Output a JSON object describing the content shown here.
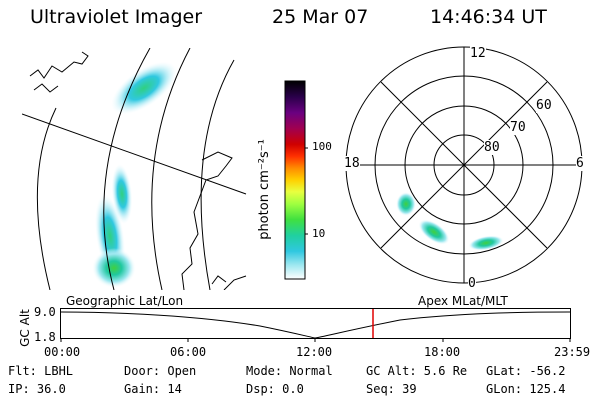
{
  "header": {
    "title": "Ultraviolet Imager",
    "date": "25 Mar 07",
    "time": "14:46:34 UT"
  },
  "colorbar": {
    "unit_label": "photon cm⁻²s⁻¹",
    "ticks": [
      "100",
      "10"
    ],
    "colors": [
      "#000000",
      "#2a004a",
      "#6a0080",
      "#a00050",
      "#d00000",
      "#ff3000",
      "#ff8c00",
      "#ffd000",
      "#e8ff40",
      "#a0ff40",
      "#40e040",
      "#20d0a0",
      "#30c8e0",
      "#9fe8f0",
      "#dff8ff",
      "#ffffff"
    ]
  },
  "polar": {
    "mlt_labels": {
      "top": "12",
      "left": "18",
      "right": "6",
      "bottom": "0"
    },
    "lat_labels": [
      "60",
      "70",
      "80"
    ]
  },
  "timeline": {
    "left_label": "Geographic Lat/Lon",
    "right_label": "Apex MLat/MLT",
    "y_axis_title": "GC Alt",
    "y_ticks": [
      "9.0",
      "1.8"
    ],
    "x_ticks": [
      "00:00",
      "06:00",
      "12:00",
      "18:00",
      "23:59"
    ],
    "marker_color": "#e00000"
  },
  "info": {
    "filter": "Flt: LBHL",
    "ip": "IP: 36.0",
    "door": "Door: Open",
    "gain": "Gain: 14",
    "mode": "Mode: Normal",
    "dsp": "Dsp:    0.0",
    "gc_alt": "GC Alt: 5.6 Re",
    "seq": "Seq: 39",
    "glat": "GLat: -56.2",
    "glon": "GLon: 125.4"
  }
}
